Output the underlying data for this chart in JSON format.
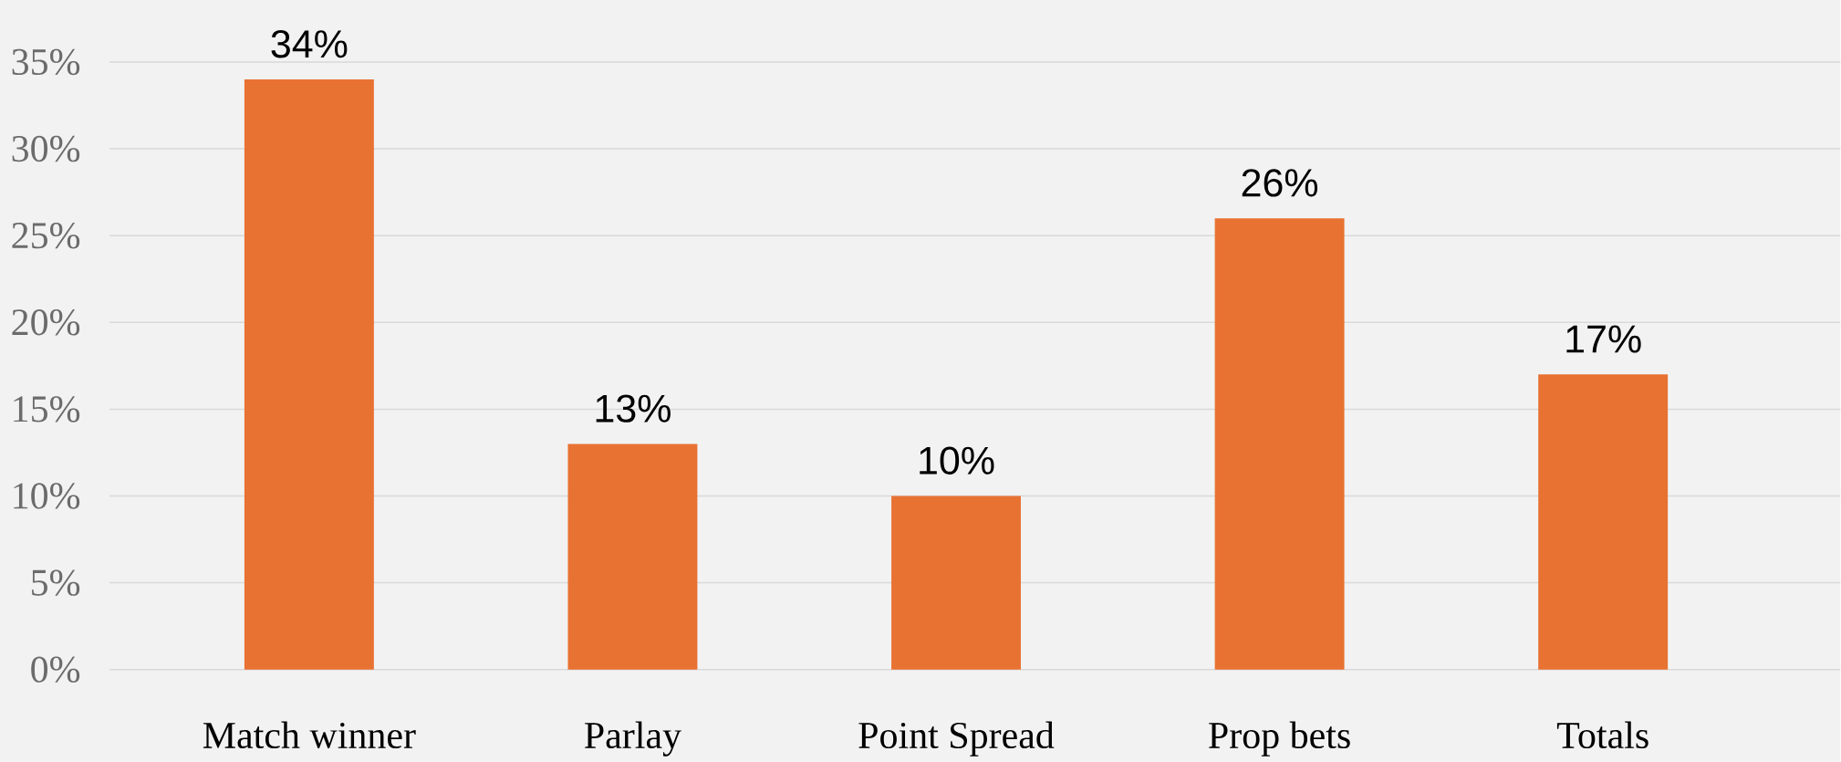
{
  "chart_data": {
    "type": "bar",
    "categories": [
      "Match winner",
      "Parlay",
      "Point Spread",
      "Prop bets",
      "Totals"
    ],
    "values": [
      34,
      13,
      10,
      26,
      17
    ],
    "color": "#e87232",
    "value_labels": [
      "34%",
      "13%",
      "10%",
      "26%",
      "17%"
    ],
    "ylim": [
      0,
      35
    ],
    "yticks": [
      {
        "value": 0,
        "label": "0%"
      },
      {
        "value": 5,
        "label": "5%"
      },
      {
        "value": 10,
        "label": "10%"
      },
      {
        "value": 15,
        "label": "15%"
      },
      {
        "value": 20,
        "label": "20%"
      },
      {
        "value": 25,
        "label": "25%"
      },
      {
        "value": 30,
        "label": "30%"
      },
      {
        "value": 35,
        "label": "35%"
      }
    ],
    "grid": "y"
  }
}
